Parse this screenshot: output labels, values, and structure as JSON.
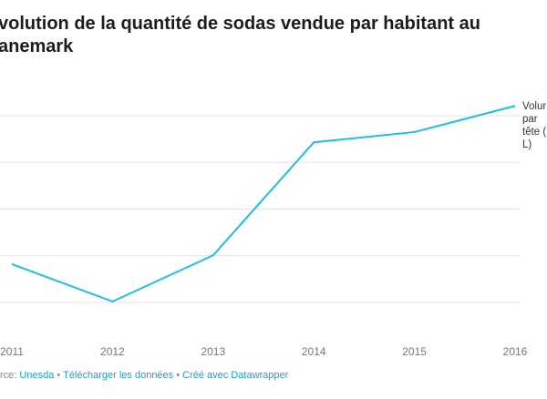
{
  "title": "volution de la quantité de sodas vendue par habitant au anemark",
  "chart_data": {
    "type": "line",
    "title": "volution de la quantité de sodas vendue par habitant au anemark",
    "x": [
      "2011",
      "2012",
      "2013",
      "2014",
      "2015",
      "2016"
    ],
    "series": [
      {
        "name": "Volume par tête (L)",
        "label_lines": [
          "Volur",
          "par",
          "tête (",
          "L)"
        ],
        "values": [
          0.82,
          0.02,
          1.01,
          3.43,
          3.65,
          4.21
        ]
      }
    ],
    "ylim": [
      0,
      4
    ],
    "grid": true,
    "color": "#1ebde8"
  },
  "footer": {
    "prefix": "rce: ",
    "source": "Unesda",
    "sep": " • ",
    "download": "Télécharger les données",
    "made": "Créé avec Datawrapper"
  }
}
